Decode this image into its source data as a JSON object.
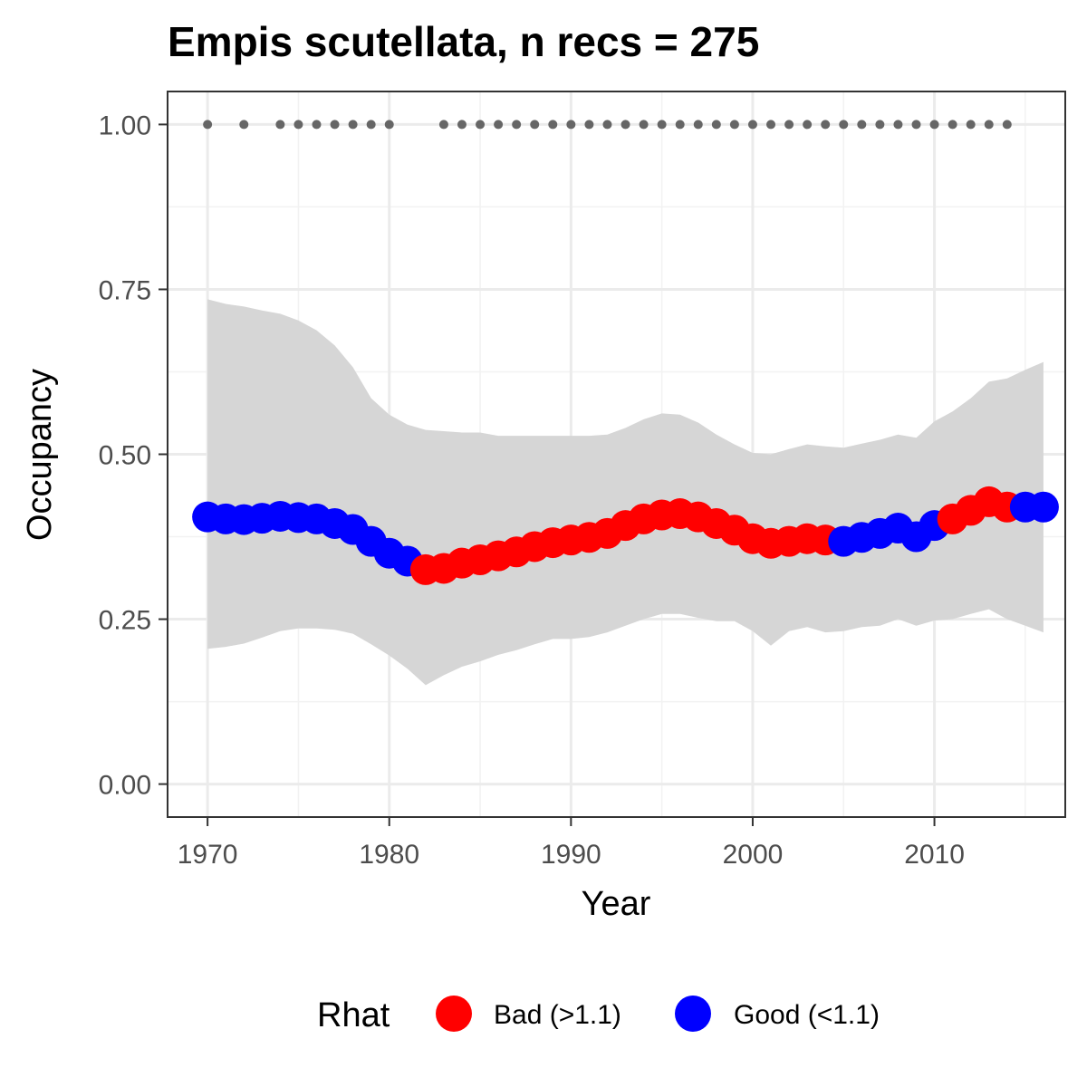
{
  "chart_data": {
    "type": "line",
    "title": "Empis scutellata, n recs = 275",
    "xlabel": "Year",
    "ylabel": "Occupancy",
    "xlim": [
      1967.8,
      2017.2
    ],
    "ylim": [
      -0.05,
      1.05
    ],
    "grid": true,
    "x_ticks": [
      1970,
      1980,
      1990,
      2000,
      2010
    ],
    "x_tick_labels": [
      "1970",
      "1980",
      "1990",
      "2000",
      "2010"
    ],
    "y_ticks": [
      0,
      0.25,
      0.5,
      0.75,
      1.0
    ],
    "y_tick_labels": [
      "0.00",
      "0.25",
      "0.50",
      "0.75",
      "1.00"
    ],
    "legend": {
      "title": "Rhat",
      "position": "bottom",
      "items": [
        {
          "label": "Bad (>1.1)",
          "color": "#ff0000"
        },
        {
          "label": "Good (<1.1)",
          "color": "#0000ff"
        }
      ]
    },
    "colors": {
      "Bad": "#ff0000",
      "Good": "#0000ff",
      "ribbon": "#d6d6d6",
      "records": "#666666"
    },
    "years": [
      1970,
      1971,
      1972,
      1973,
      1974,
      1975,
      1976,
      1977,
      1978,
      1979,
      1980,
      1981,
      1982,
      1983,
      1984,
      1985,
      1986,
      1987,
      1988,
      1989,
      1990,
      1991,
      1992,
      1993,
      1994,
      1995,
      1996,
      1997,
      1998,
      1999,
      2000,
      2001,
      2002,
      2003,
      2004,
      2005,
      2006,
      2007,
      2008,
      2009,
      2010,
      2011,
      2012,
      2013,
      2014,
      2015,
      2016
    ],
    "occupancy": [
      0.405,
      0.402,
      0.401,
      0.403,
      0.406,
      0.404,
      0.402,
      0.395,
      0.386,
      0.368,
      0.35,
      0.338,
      0.325,
      0.327,
      0.335,
      0.34,
      0.346,
      0.352,
      0.36,
      0.366,
      0.37,
      0.374,
      0.38,
      0.392,
      0.402,
      0.408,
      0.41,
      0.405,
      0.395,
      0.385,
      0.372,
      0.365,
      0.368,
      0.372,
      0.37,
      0.368,
      0.374,
      0.38,
      0.388,
      0.375,
      0.392,
      0.402,
      0.415,
      0.428,
      0.42,
      0.42,
      0.42
    ],
    "rhat_status": [
      "Good",
      "Good",
      "Good",
      "Good",
      "Good",
      "Good",
      "Good",
      "Good",
      "Good",
      "Good",
      "Good",
      "Good",
      "Bad",
      "Bad",
      "Bad",
      "Bad",
      "Bad",
      "Bad",
      "Bad",
      "Bad",
      "Bad",
      "Bad",
      "Bad",
      "Bad",
      "Bad",
      "Bad",
      "Bad",
      "Bad",
      "Bad",
      "Bad",
      "Bad",
      "Bad",
      "Bad",
      "Bad",
      "Bad",
      "Good",
      "Good",
      "Good",
      "Good",
      "Good",
      "Good",
      "Bad",
      "Bad",
      "Bad",
      "Bad",
      "Good",
      "Good"
    ],
    "upper_ci": [
      0.735,
      0.728,
      0.724,
      0.718,
      0.713,
      0.703,
      0.688,
      0.665,
      0.632,
      0.585,
      0.56,
      0.545,
      0.537,
      0.535,
      0.533,
      0.533,
      0.528,
      0.528,
      0.528,
      0.528,
      0.528,
      0.528,
      0.53,
      0.54,
      0.553,
      0.562,
      0.56,
      0.548,
      0.53,
      0.515,
      0.502,
      0.5,
      0.508,
      0.515,
      0.512,
      0.51,
      0.516,
      0.522,
      0.53,
      0.525,
      0.55,
      0.565,
      0.585,
      0.61,
      0.615,
      0.628,
      0.64
    ],
    "lower_ci": [
      0.205,
      0.208,
      0.213,
      0.222,
      0.232,
      0.236,
      0.236,
      0.234,
      0.228,
      0.212,
      0.195,
      0.175,
      0.15,
      0.165,
      0.178,
      0.186,
      0.196,
      0.203,
      0.212,
      0.22,
      0.22,
      0.223,
      0.23,
      0.24,
      0.25,
      0.258,
      0.258,
      0.252,
      0.247,
      0.247,
      0.232,
      0.21,
      0.232,
      0.238,
      0.23,
      0.232,
      0.238,
      0.24,
      0.25,
      0.24,
      0.248,
      0.25,
      0.258,
      0.265,
      0.25,
      0.24,
      0.23
    ],
    "record_years": [
      1970,
      1972,
      1974,
      1975,
      1976,
      1977,
      1978,
      1979,
      1980,
      1983,
      1984,
      1985,
      1986,
      1987,
      1988,
      1989,
      1990,
      1991,
      1992,
      1993,
      1994,
      1995,
      1996,
      1997,
      1998,
      1999,
      2000,
      2001,
      2002,
      2003,
      2004,
      2005,
      2006,
      2007,
      2008,
      2009,
      2010,
      2011,
      2012,
      2013,
      2014
    ],
    "record_value": 1.0
  }
}
